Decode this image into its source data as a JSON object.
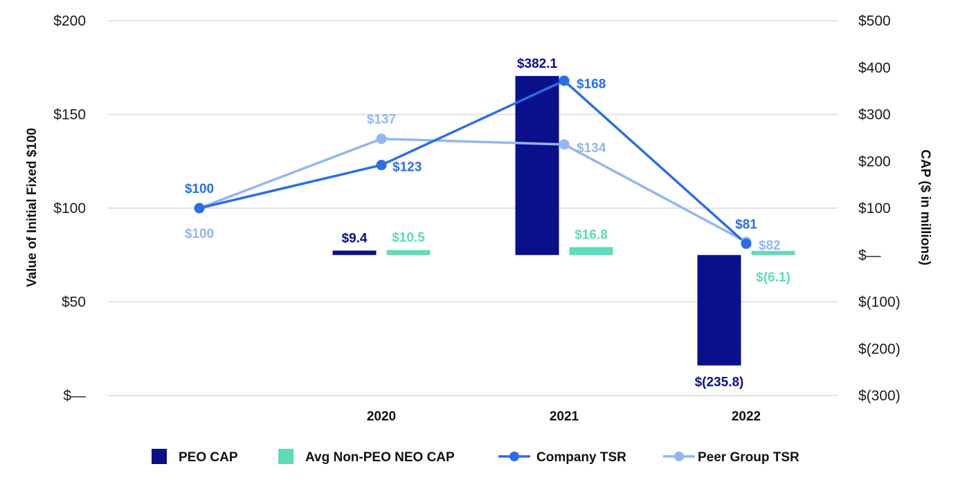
{
  "colors": {
    "peo_cap": "#0a0f8c",
    "non_peo_cap": "#5ddcb8",
    "company_tsr": "#2a6de8",
    "peer_tsr": "#92b6f2",
    "grid": "#e3e3e3"
  },
  "chart_data": {
    "type": "bar+line",
    "title": "",
    "left_axis": {
      "label": "Value of Initial Fixed $100",
      "ylim": [
        0,
        200
      ],
      "ticks": [
        0,
        50,
        100,
        150,
        200
      ],
      "tick_labels": [
        "$—",
        "$50",
        "$100",
        "$150",
        "$200"
      ]
    },
    "right_axis": {
      "label": "CAP ($ in millions)",
      "ylim": [
        -300,
        500
      ],
      "ticks": [
        -300,
        -200,
        -100,
        0,
        100,
        200,
        300,
        400,
        500
      ],
      "tick_labels": [
        "$(300)",
        "$(200)",
        "$(100)",
        "$—",
        "$100",
        "$200",
        "$300",
        "$400",
        "$500"
      ]
    },
    "grid": true,
    "categories": [
      "",
      "2020",
      "2021",
      "2022"
    ],
    "bar_series": [
      {
        "name": "PEO CAP",
        "values": [
          null,
          9.4,
          382.1,
          -235.8
        ],
        "labels": [
          "",
          "$9.4",
          "$382.1",
          "$(235.8)"
        ]
      },
      {
        "name": "Avg Non-PEO NEO CAP",
        "values": [
          null,
          10.5,
          16.8,
          -6.1
        ],
        "labels": [
          "",
          "$10.5",
          "$16.8",
          "$(6.1)"
        ]
      }
    ],
    "line_series": [
      {
        "name": "Company TSR",
        "values": [
          100,
          123,
          168,
          81
        ],
        "labels": [
          "$100",
          "$123",
          "$168",
          "$81"
        ]
      },
      {
        "name": "Peer Group TSR",
        "values": [
          100,
          137,
          134,
          82
        ],
        "labels": [
          "$100",
          "$137",
          "$134",
          "$82"
        ]
      }
    ],
    "legend_position": "bottom",
    "legend": [
      "PEO CAP",
      "Avg Non-PEO NEO CAP",
      "Company TSR",
      "Peer Group TSR"
    ]
  }
}
